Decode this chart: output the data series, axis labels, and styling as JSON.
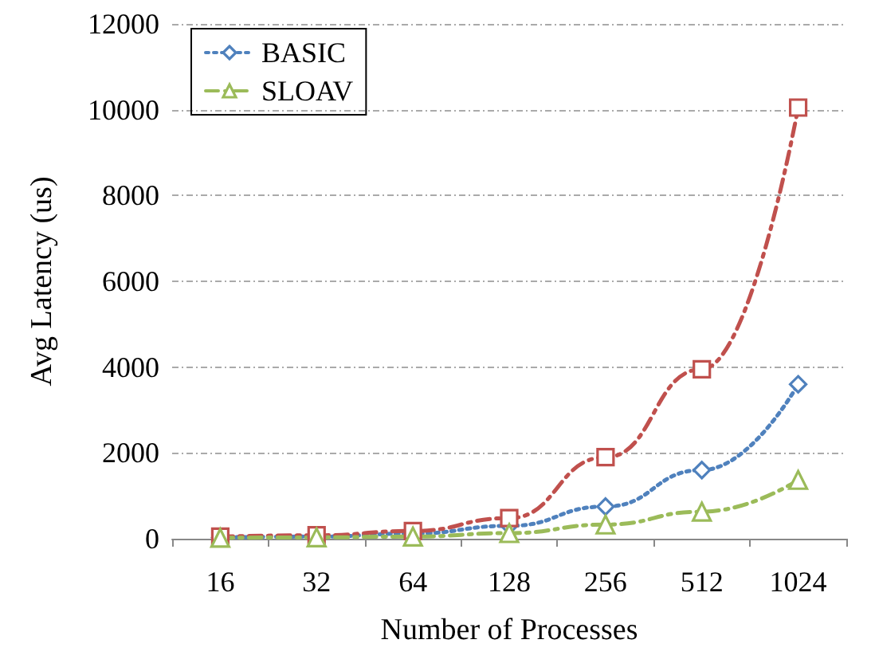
{
  "chart_data": {
    "type": "line",
    "xlabel": "Number of Processes",
    "ylabel": "Avg Latency (us)",
    "categories": [
      "16",
      "32",
      "64",
      "128",
      "256",
      "512",
      "1024"
    ],
    "series": [
      {
        "name": "BASIC",
        "color": "#4f81bd",
        "marker": "diamond",
        "line_style": "dotted",
        "values": [
          30,
          50,
          120,
          300,
          750,
          1600,
          3600
        ]
      },
      {
        "color": "#c0504d",
        "marker": "square",
        "line_style": "dashed",
        "values": [
          50,
          80,
          180,
          480,
          1900,
          3950,
          10050
        ]
      },
      {
        "name": "SLOAV",
        "color": "#9bbb59",
        "marker": "triangle",
        "line_style": "dashed",
        "values": [
          20,
          30,
          50,
          130,
          330,
          630,
          1370
        ]
      }
    ],
    "ylim": [
      0,
      12000
    ],
    "yticks": [
      0,
      2000,
      4000,
      6000,
      8000,
      10000,
      12000
    ],
    "grid": "y",
    "legend": "top left"
  }
}
